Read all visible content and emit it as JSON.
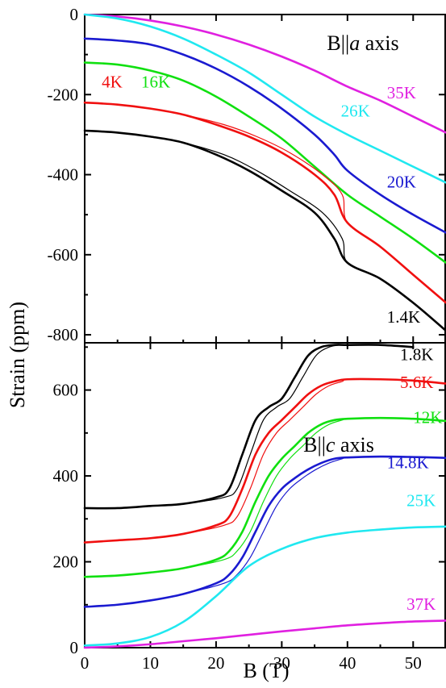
{
  "chart_data": {
    "type": "line",
    "xlabel": "B (T)",
    "ylabel": "Strain (ppm)",
    "xlim": [
      0,
      55
    ],
    "xticks": [
      "0",
      "10",
      "20",
      "30",
      "40",
      "50"
    ],
    "panels": [
      {
        "annotation": {
          "prefix": "B||",
          "axis": "a",
          "suffix": " axis"
        },
        "ylim": [
          -820,
          0
        ],
        "yticks": [
          "0",
          "-200",
          "-400",
          "-600",
          "-800"
        ],
        "series": [
          {
            "name": "35K",
            "color": "#e020e0",
            "x": [
              0,
              5,
              10,
              15,
              20,
              25,
              30,
              35,
              40,
              45,
              50,
              55
            ],
            "y": [
              0,
              -5,
              -15,
              -30,
              -50,
              -75,
              -105,
              -140,
              -180,
              -215,
              -255,
              -295
            ],
            "label_at": [
              46,
              -210
            ]
          },
          {
            "name": "26K",
            "color": "#20e8f0",
            "x": [
              0,
              5,
              10,
              15,
              20,
              25,
              30,
              35,
              40,
              45,
              50,
              55
            ],
            "y": [
              0,
              -10,
              -30,
              -60,
              -100,
              -145,
              -200,
              -255,
              -300,
              -340,
              -380,
              -420
            ],
            "label_at": [
              39,
              -255
            ]
          },
          {
            "name": "20K",
            "color": "#1a1ad0",
            "x": [
              0,
              5,
              10,
              15,
              20,
              25,
              30,
              35,
              38,
              40,
              45,
              50,
              55
            ],
            "y": [
              -60,
              -65,
              -75,
              -100,
              -135,
              -180,
              -235,
              -300,
              -350,
              -390,
              -450,
              -500,
              -545
            ],
            "label_at": [
              46,
              -432
            ]
          },
          {
            "name": "16K",
            "color": "#10e010",
            "x": [
              0,
              5,
              10,
              15,
              20,
              25,
              30,
              35,
              40,
              45,
              50,
              55
            ],
            "y": [
              -120,
              -125,
              -140,
              -165,
              -205,
              -255,
              -310,
              -380,
              -450,
              -505,
              -560,
              -620
            ],
            "label_at": [
              8.6,
              -182
            ]
          },
          {
            "name": "4K",
            "color": "#f01010",
            "x": [
              0,
              5,
              10,
              15,
              20,
              25,
              30,
              35,
              38,
              40,
              45,
              50,
              55
            ],
            "y": [
              -220,
              -225,
              -235,
              -250,
              -275,
              -305,
              -345,
              -400,
              -450,
              -520,
              -580,
              -650,
              -720
            ],
            "label_at": [
              2.6,
              -182
            ]
          },
          {
            "name": "1.4K",
            "color": "#000000",
            "x": [
              0,
              5,
              10,
              15,
              20,
              25,
              30,
              35,
              38,
              40,
              45,
              50,
              55
            ],
            "y": [
              -290,
              -295,
              -305,
              -320,
              -350,
              -390,
              -440,
              -495,
              -560,
              -620,
              -660,
              -720,
              -790
            ],
            "label_at": [
              46,
              -770
            ]
          }
        ]
      },
      {
        "annotation": {
          "prefix": "B||",
          "axis": "c",
          "suffix": " axis"
        },
        "ylim": [
          0,
          710
        ],
        "yticks": [
          "0",
          "200",
          "400",
          "600"
        ],
        "series": [
          {
            "name": "1.8K",
            "color": "#000000",
            "x": [
              0,
              5,
              10,
              15,
              20,
              22,
              24,
              26,
              28,
              30,
              32,
              34,
              36,
              38,
              40,
              45,
              50
            ],
            "y": [
              325,
              325,
              330,
              335,
              350,
              370,
              450,
              530,
              560,
              580,
              630,
              680,
              700,
              705,
              705,
              705,
              700
            ],
            "label_at": [
              48,
              670
            ]
          },
          {
            "name": "5.6K",
            "color": "#f01010",
            "x": [
              0,
              5,
              10,
              15,
              20,
              22,
              24,
              26,
              28,
              30,
              32,
              34,
              36,
              38,
              40,
              45,
              50,
              55
            ],
            "y": [
              245,
              250,
              255,
              265,
              285,
              305,
              370,
              450,
              500,
              530,
              560,
              590,
              610,
              620,
              625,
              625,
              622,
              615
            ],
            "label_at": [
              48,
              605
            ]
          },
          {
            "name": "12K",
            "color": "#10e010",
            "x": [
              0,
              5,
              10,
              15,
              20,
              22,
              24,
              26,
              28,
              30,
              32,
              34,
              36,
              38,
              40,
              45,
              50,
              55
            ],
            "y": [
              165,
              168,
              175,
              185,
              205,
              225,
              270,
              340,
              400,
              440,
              470,
              500,
              520,
              530,
              533,
              535,
              533,
              528
            ],
            "label_at": [
              50,
              523
            ]
          },
          {
            "name": "14.8K",
            "color": "#1a1ad0",
            "x": [
              0,
              5,
              10,
              15,
              20,
              22,
              24,
              26,
              28,
              30,
              32,
              34,
              36,
              38,
              40,
              45,
              50,
              55
            ],
            "y": [
              95,
              100,
              110,
              125,
              150,
              170,
              210,
              270,
              330,
              370,
              395,
              415,
              430,
              440,
              443,
              445,
              444,
              442
            ],
            "label_at": [
              46,
              418
            ]
          },
          {
            "name": "25K",
            "color": "#20e8f0",
            "x": [
              0,
              5,
              10,
              15,
              20,
              25,
              30,
              35,
              40,
              45,
              50,
              55
            ],
            "y": [
              5,
              10,
              25,
              60,
              120,
              190,
              230,
              255,
              268,
              275,
              280,
              282
            ],
            "label_at": [
              49,
              330
            ]
          },
          {
            "name": "37K",
            "color": "#e020e0",
            "x": [
              0,
              5,
              10,
              15,
              20,
              25,
              30,
              35,
              40,
              45,
              50,
              55
            ],
            "y": [
              0,
              3,
              8,
              15,
              22,
              30,
              38,
              45,
              52,
              57,
              61,
              63
            ],
            "label_at": [
              49,
              88
            ]
          }
        ]
      }
    ]
  }
}
